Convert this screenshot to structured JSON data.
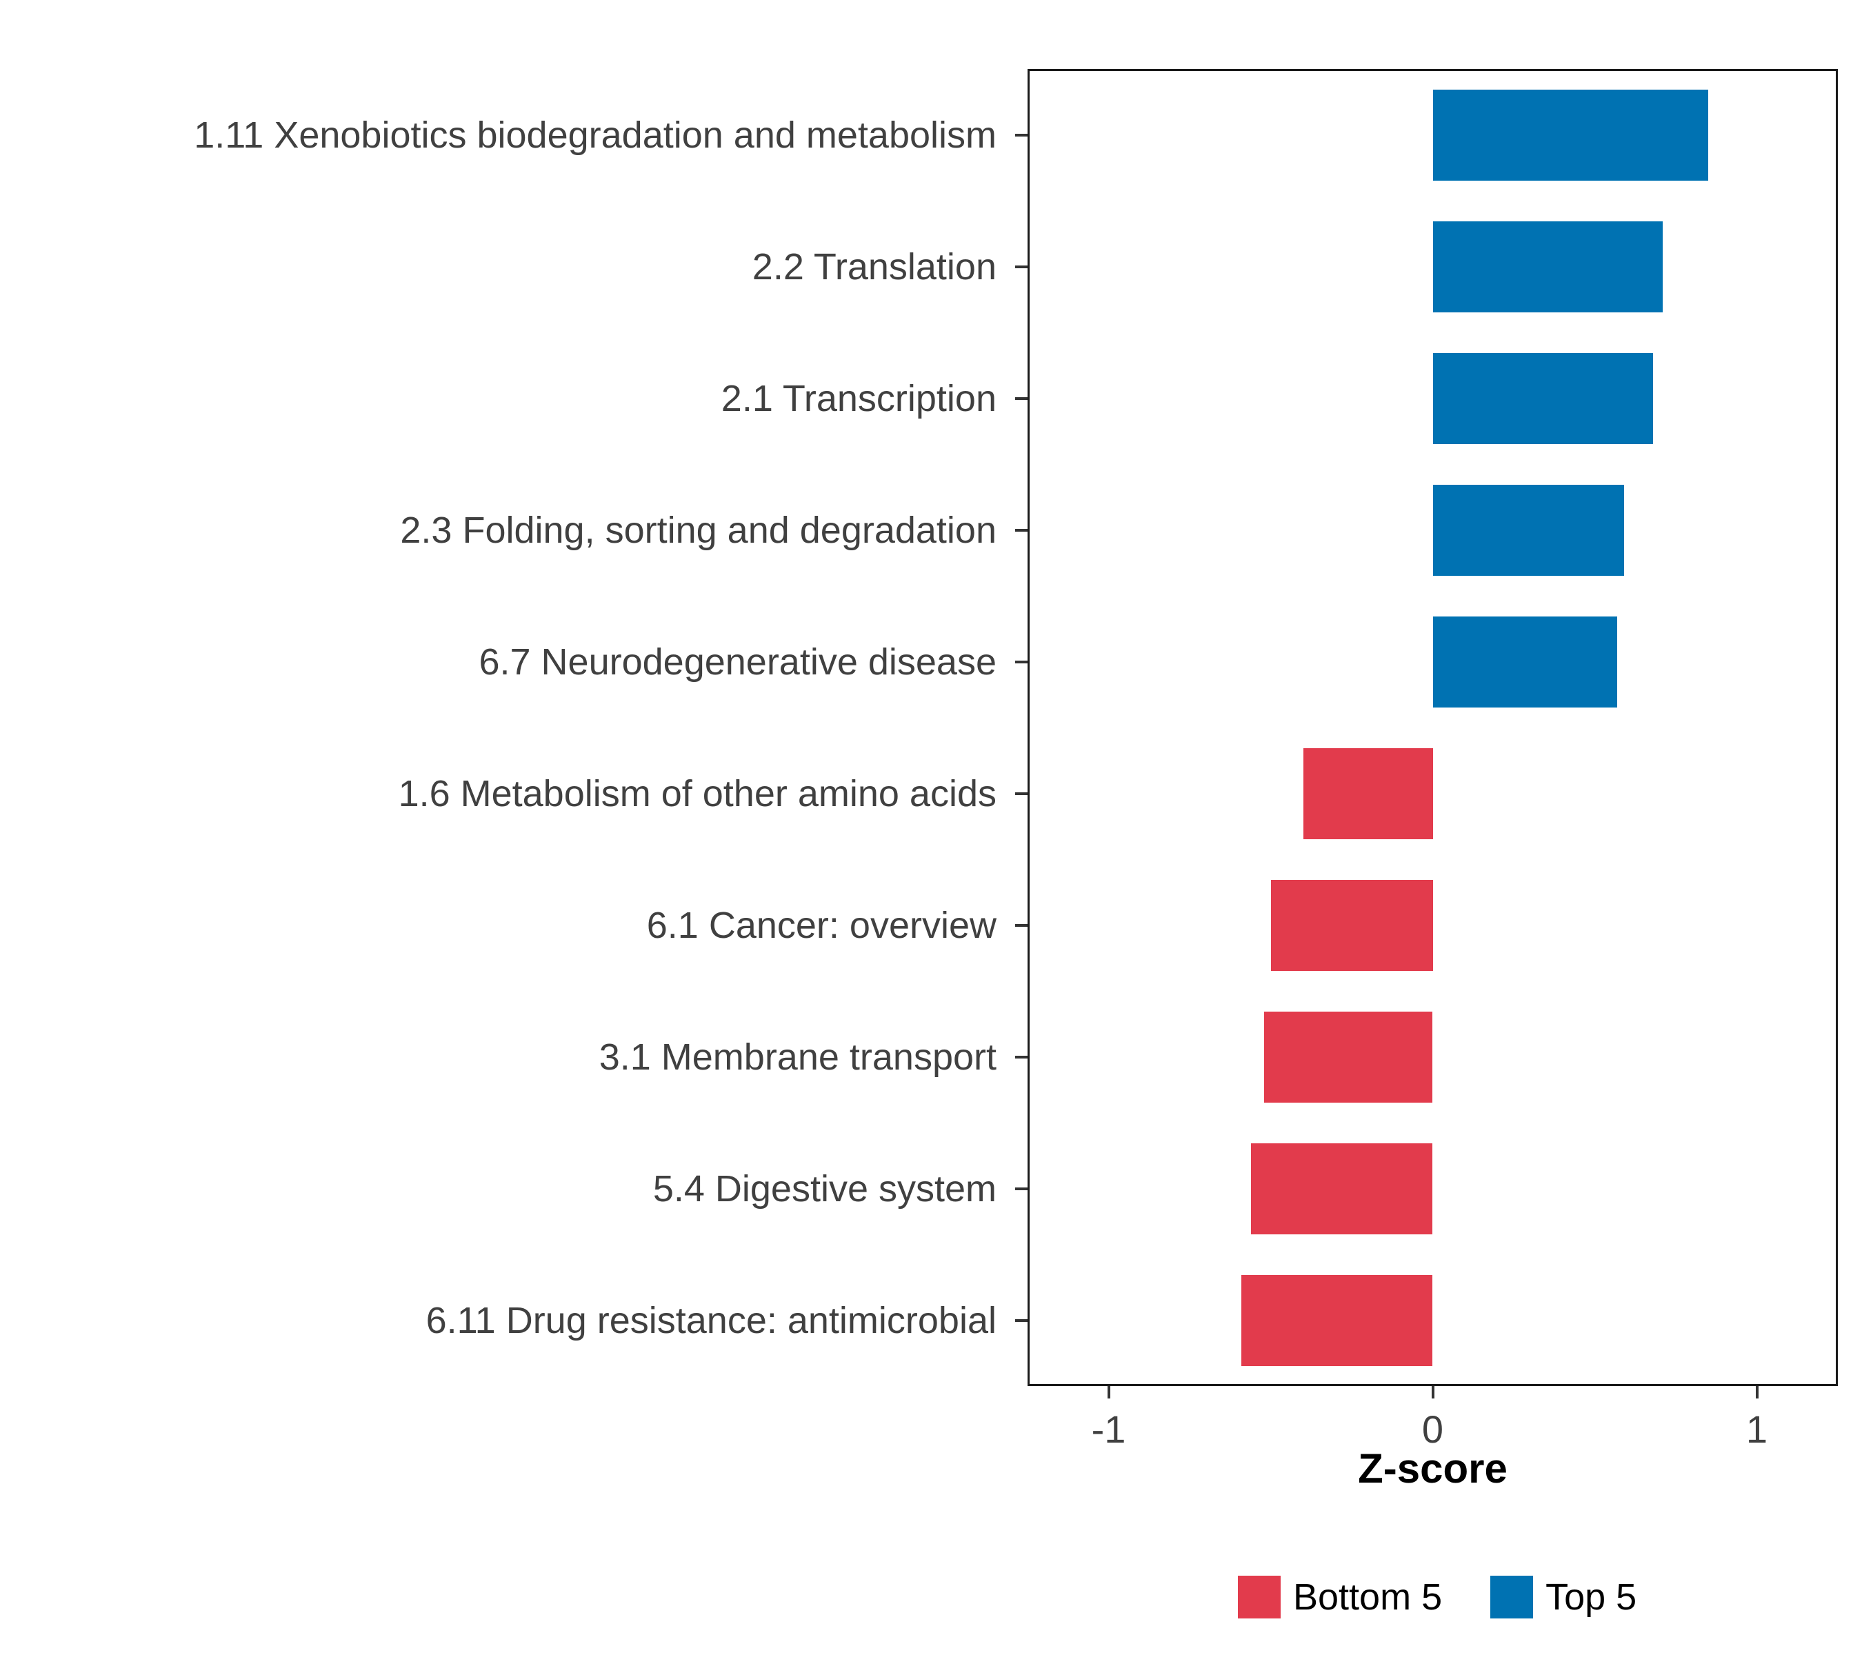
{
  "chart_data": {
    "type": "bar",
    "orientation": "horizontal",
    "title": "",
    "xlabel": "Z-score",
    "ylabel": "",
    "xlim": [
      -1.25,
      1.25
    ],
    "x_ticks": [
      -1,
      0,
      1
    ],
    "x_tick_labels": [
      "-1",
      "0",
      "1"
    ],
    "categories": [
      "1.11 Xenobiotics biodegradation and metabolism",
      "2.2 Translation",
      "2.1 Transcription",
      "2.3 Folding, sorting and degradation",
      "6.7 Neurodegenerative disease",
      "1.6 Metabolism of other amino acids",
      "6.1 Cancer: overview",
      "3.1 Membrane transport",
      "5.4 Digestive system",
      "6.11 Drug resistance: antimicrobial"
    ],
    "values": [
      0.85,
      0.71,
      0.68,
      0.59,
      0.57,
      -0.4,
      -0.5,
      -0.52,
      -0.56,
      -0.59
    ],
    "groups": [
      "Top 5",
      "Top 5",
      "Top 5",
      "Top 5",
      "Top 5",
      "Bottom 5",
      "Bottom 5",
      "Bottom 5",
      "Bottom 5",
      "Bottom 5"
    ],
    "colors": {
      "top": "#0072B2",
      "bottom": "#E23B4C"
    },
    "legend": [
      {
        "label": "Bottom 5",
        "color": "#E23B4C"
      },
      {
        "label": "Top 5",
        "color": "#0072B2"
      }
    ],
    "legend_position": "bottom-right",
    "grid": false
  }
}
